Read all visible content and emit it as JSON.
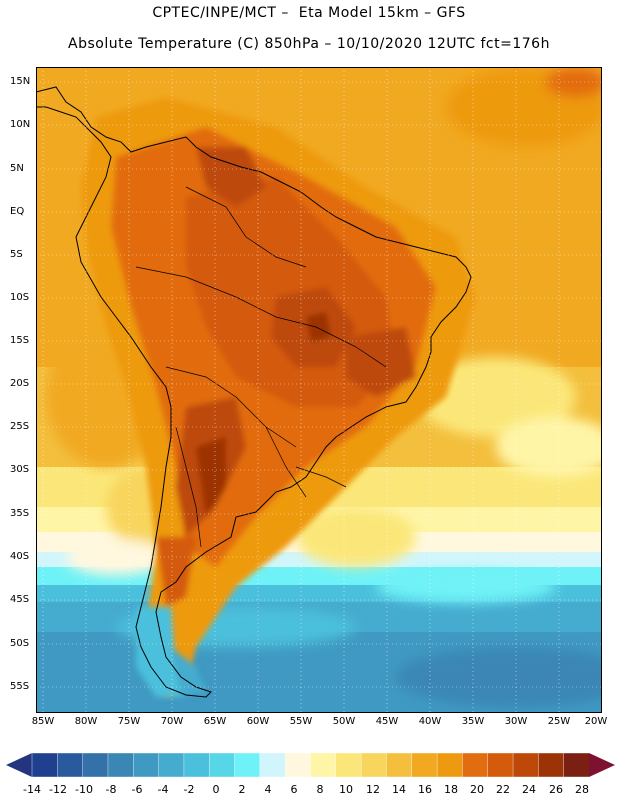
{
  "header": {
    "line1": "CPTEC/INPE/MCT –  Eta Model 15km – GFS",
    "line2": "Absolute Temperature (C) 850hPa – 10/10/2020 12UTC fct=176h"
  },
  "map": {
    "lat_labels": [
      "15N",
      "10N",
      "5N",
      "EQ",
      "5S",
      "10S",
      "15S",
      "20S",
      "25S",
      "30S",
      "35S",
      "40S",
      "45S",
      "50S",
      "55S"
    ],
    "lon_labels": [
      "85W",
      "80W",
      "75W",
      "70W",
      "65W",
      "60W",
      "55W",
      "50W",
      "45W",
      "40W",
      "35W",
      "30W",
      "25W",
      "20W"
    ],
    "grid": "dotted",
    "region": "South America"
  },
  "colorbar": {
    "ticks": [
      "-14",
      "-12",
      "-10",
      "-8",
      "-6",
      "-4",
      "-2",
      "0",
      "2",
      "4",
      "6",
      "8",
      "10",
      "12",
      "14",
      "16",
      "18",
      "20",
      "22",
      "24",
      "26",
      "28"
    ],
    "colors": [
      "#1f3f8f",
      "#2a5a9e",
      "#3471a8",
      "#3a86b5",
      "#3f99c2",
      "#45abcf",
      "#4bc0dc",
      "#57d6e7",
      "#6ff2f7",
      "#d0f6fb",
      "#fff8de",
      "#fff5a7",
      "#fbe779",
      "#f8d55d",
      "#f3bf3d",
      "#f1a922",
      "#ee9a10",
      "#e26c10",
      "#d45a0c",
      "#bd4807",
      "#9b3306",
      "#7a1f12"
    ],
    "under_color": "#24357f",
    "over_color": "#7c1130"
  }
}
